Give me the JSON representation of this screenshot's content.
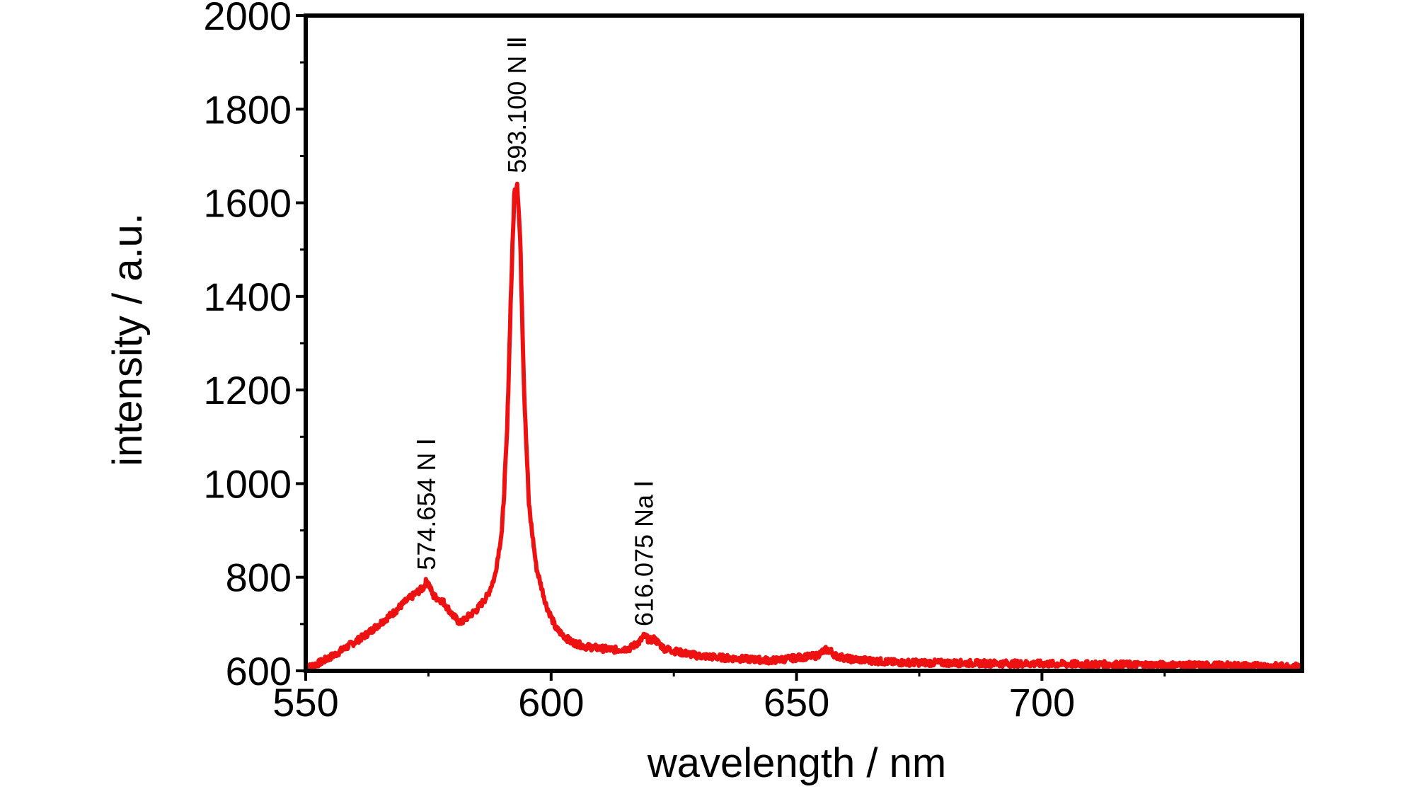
{
  "chart_data": {
    "type": "line",
    "xlabel": "wavelength / nm",
    "ylabel": "intensity / a.u.",
    "xlim": [
      550,
      753
    ],
    "ylim": [
      600,
      2000
    ],
    "xticks": [
      550,
      600,
      650,
      700
    ],
    "yticks": [
      600,
      800,
      1000,
      1200,
      1400,
      1600,
      1800,
      2000
    ],
    "grid": false,
    "legend": "none",
    "line_color": "#ee1111",
    "series": [
      {
        "x": [
          550,
          553,
          556,
          559,
          562,
          565,
          568,
          570,
          572,
          574,
          574.7,
          576,
          578,
          580,
          581.5,
          583,
          585,
          587,
          588.5,
          590,
          591,
          591.8,
          592.5,
          593.1,
          593.7,
          594.5,
          595.5,
          597,
          599,
          601,
          604,
          607,
          610,
          613,
          616,
          618,
          619,
          620,
          621,
          623,
          626,
          630,
          635,
          640,
          645,
          650,
          654,
          656,
          657,
          658,
          661,
          665,
          670,
          680,
          690,
          700,
          710,
          720,
          730,
          740,
          753
        ],
        "y": [
          605,
          618,
          635,
          655,
          675,
          700,
          725,
          745,
          762,
          778,
          795,
          760,
          748,
          718,
          702,
          715,
          732,
          760,
          800,
          900,
          1100,
          1400,
          1620,
          1645,
          1520,
          1200,
          950,
          820,
          740,
          690,
          662,
          652,
          648,
          645,
          648,
          662,
          675,
          665,
          668,
          648,
          640,
          632,
          628,
          625,
          622,
          628,
          632,
          645,
          642,
          632,
          625,
          622,
          618,
          617,
          616,
          615,
          614,
          613,
          612,
          611,
          609
        ]
      }
    ],
    "annotations": [
      {
        "text": "574.654 N Ⅰ",
        "x": 574.654,
        "y": 800
      },
      {
        "text": "593.100 N Ⅱ",
        "x": 593.1,
        "y": 1648
      },
      {
        "text": "616.075 Na Ⅰ",
        "x": 619,
        "y": 680
      }
    ]
  }
}
